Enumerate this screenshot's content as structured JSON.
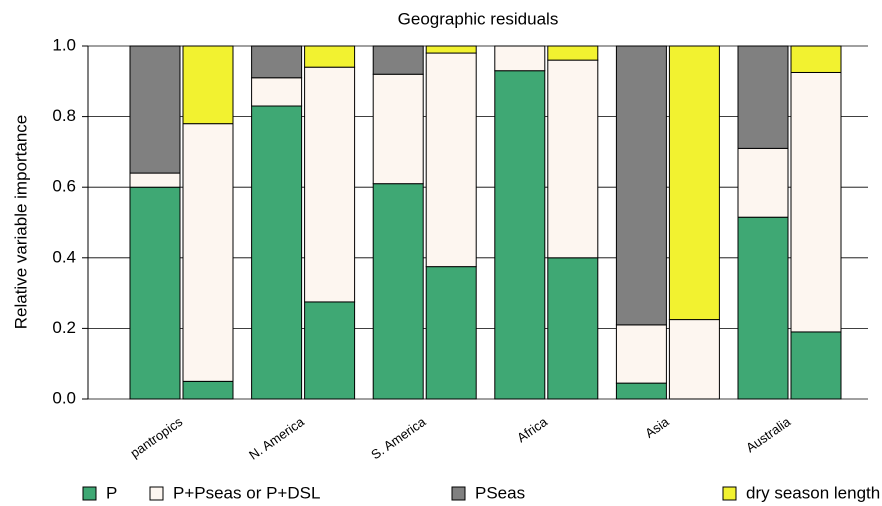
{
  "chart_data": {
    "type": "stacked_bar",
    "title": "Geographic residuals",
    "ylabel": "Relative variable importance",
    "categories": [
      "pantropics",
      null,
      "N. America",
      null,
      "S. America",
      null,
      "Africa",
      null,
      "Asia",
      null,
      "Australia",
      null
    ],
    "series": [
      {
        "name": "P",
        "color": "#3fa874",
        "values": [
          0.6,
          0.05,
          0.83,
          0.275,
          0.61,
          0.375,
          0.93,
          0.4,
          0.045,
          0.0,
          0.515,
          0.19
        ]
      },
      {
        "name": "P+Pseas or P+DSL",
        "color": "#fdf6f0",
        "values": [
          0.04,
          0.73,
          0.08,
          0.665,
          0.31,
          0.605,
          0.07,
          0.56,
          0.165,
          0.225,
          0.195,
          0.735
        ]
      },
      {
        "name": "PSeas",
        "color": "#808080",
        "values": [
          0.36,
          null,
          0.09,
          null,
          0.08,
          null,
          null,
          null,
          0.79,
          null,
          0.29,
          null
        ]
      },
      {
        "name": "dry season length (DSL)",
        "color": "#f2f230",
        "values": [
          null,
          0.22,
          null,
          0.06,
          null,
          0.02,
          null,
          0.04,
          null,
          0.775,
          null,
          0.075
        ]
      }
    ],
    "ylim": [
      0,
      1
    ],
    "yticks": [
      {
        "value": 0,
        "label": "0.0"
      },
      {
        "value": 0.2,
        "label": "0.2"
      },
      {
        "value": 0.4,
        "label": "0.4"
      },
      {
        "value": 0.6,
        "label": "0.6"
      },
      {
        "value": 0.8,
        "label": "0.8"
      },
      {
        "value": 1,
        "label": "1.0"
      }
    ],
    "grid": true
  }
}
